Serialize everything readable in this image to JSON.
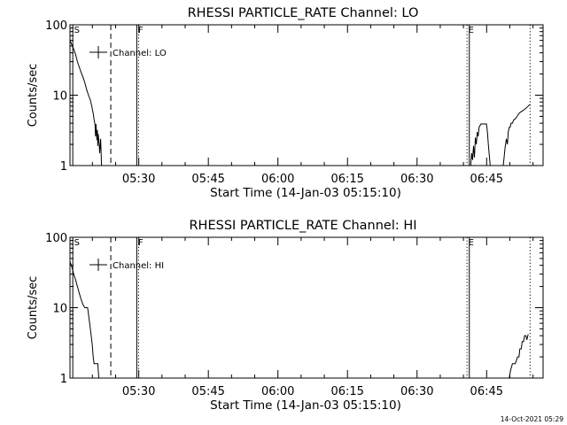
{
  "colors": {
    "background": "#ffffff",
    "foreground": "#000000"
  },
  "footer_timestamp": "14-Oct-2021 05:29",
  "chart_data": [
    {
      "type": "line",
      "title": "RHESSI PARTICLE_RATE Channel: LO",
      "xlabel": "Start Time (14-Jan-03 05:15:10)",
      "ylabel": "Counts/sec",
      "yscale": "log",
      "ylim": [
        1,
        100
      ],
      "xlim_minutes": [
        0,
        102
      ],
      "x_unit": "minutes after 05:15:10",
      "x_ticks": [
        {
          "label": "05:30",
          "minute": 14.83
        },
        {
          "label": "05:45",
          "minute": 29.83
        },
        {
          "label": "06:00",
          "minute": 44.83
        },
        {
          "label": "06:15",
          "minute": 59.83
        },
        {
          "label": "06:30",
          "minute": 74.83
        },
        {
          "label": "06:45",
          "minute": 89.83
        }
      ],
      "y_ticks": [
        {
          "label": "1",
          "value": 1
        },
        {
          "label": "10",
          "value": 10
        },
        {
          "label": "100",
          "value": 100
        }
      ],
      "legend": {
        "label": "Channel: LO",
        "placement": "top-left"
      },
      "markers": [
        {
          "label": "S",
          "minute": 0.6,
          "style": "solid"
        },
        {
          "label": "",
          "minute": 8.8,
          "style": "dashed"
        },
        {
          "label": "F",
          "minute": 14.4,
          "style": "solid"
        },
        {
          "label": "",
          "minute": 14.8,
          "style": "dotted"
        },
        {
          "label": "E",
          "minute": 85.6,
          "style": "dotted"
        },
        {
          "label": "",
          "minute": 86.1,
          "style": "solid"
        },
        {
          "label": "",
          "minute": 99.2,
          "style": "dotted"
        }
      ],
      "series": [
        {
          "name": "Channel: LO",
          "segments": [
            [
              [
                0,
                60
              ],
              [
                0.4,
                52
              ],
              [
                0.8,
                45
              ],
              [
                1.2,
                38
              ],
              [
                1.6,
                30
              ],
              [
                2.0,
                25
              ],
              [
                2.4,
                21
              ],
              [
                2.8,
                18
              ],
              [
                3.2,
                15
              ],
              [
                3.6,
                12
              ],
              [
                4.0,
                10
              ],
              [
                4.4,
                8.5
              ],
              [
                4.7,
                7
              ],
              [
                5.0,
                5.5
              ],
              [
                5.2,
                4.5
              ],
              [
                5.4,
                3.8
              ],
              [
                5.5,
                2.6
              ],
              [
                5.6,
                3.9
              ],
              [
                5.8,
                2.3
              ],
              [
                5.9,
                3.2
              ],
              [
                6.0,
                1.9
              ],
              [
                6.1,
                2.8
              ],
              [
                6.3,
                2.0
              ],
              [
                6.4,
                1.5
              ],
              [
                6.6,
                2.4
              ],
              [
                6.8,
                1.0
              ]
            ],
            [
              [
                86.4,
                1.0
              ],
              [
                86.6,
                1.5
              ],
              [
                86.8,
                1.2
              ],
              [
                87.0,
                1.9
              ],
              [
                87.2,
                1.3
              ],
              [
                87.4,
                2.5
              ],
              [
                87.6,
                2.0
              ],
              [
                87.8,
                3.0
              ],
              [
                88.0,
                2.6
              ],
              [
                88.2,
                3.5
              ],
              [
                88.6,
                3.9
              ],
              [
                89.4,
                3.9
              ],
              [
                89.8,
                3.9
              ],
              [
                90.0,
                3.0
              ],
              [
                90.2,
                2.0
              ],
              [
                90.4,
                1.4
              ],
              [
                90.6,
                1.0
              ]
            ],
            [
              [
                93.4,
                1.0
              ],
              [
                93.6,
                1.3
              ],
              [
                93.8,
                1.8
              ],
              [
                94.1,
                2.4
              ],
              [
                94.3,
                2.0
              ],
              [
                94.5,
                3.0
              ],
              [
                94.7,
                3.5
              ],
              [
                94.9,
                3.5
              ],
              [
                95.1,
                4.0
              ],
              [
                95.4,
                4.0
              ],
              [
                95.7,
                4.5
              ],
              [
                96.0,
                4.6
              ],
              [
                96.4,
                5.0
              ],
              [
                96.8,
                5.5
              ],
              [
                97.2,
                5.8
              ],
              [
                97.6,
                6.0
              ],
              [
                98.0,
                6.3
              ],
              [
                98.4,
                6.6
              ],
              [
                98.8,
                7.0
              ],
              [
                99.2,
                7.4
              ]
            ]
          ]
        }
      ]
    },
    {
      "type": "line",
      "title": "RHESSI PARTICLE_RATE Channel: HI",
      "xlabel": "Start Time (14-Jan-03 05:15:10)",
      "ylabel": "Counts/sec",
      "yscale": "log",
      "ylim": [
        1,
        100
      ],
      "xlim_minutes": [
        0,
        102
      ],
      "x_unit": "minutes after 05:15:10",
      "x_ticks": [
        {
          "label": "05:30",
          "minute": 14.83
        },
        {
          "label": "05:45",
          "minute": 29.83
        },
        {
          "label": "06:00",
          "minute": 44.83
        },
        {
          "label": "06:15",
          "minute": 59.83
        },
        {
          "label": "06:30",
          "minute": 74.83
        },
        {
          "label": "06:45",
          "minute": 89.83
        }
      ],
      "y_ticks": [
        {
          "label": "1",
          "value": 1
        },
        {
          "label": "10",
          "value": 10
        },
        {
          "label": "100",
          "value": 100
        }
      ],
      "legend": {
        "label": "Channel: HI",
        "placement": "top-left"
      },
      "markers": [
        {
          "label": "S",
          "minute": 0.6,
          "style": "solid"
        },
        {
          "label": "",
          "minute": 8.8,
          "style": "dashed"
        },
        {
          "label": "F",
          "minute": 14.4,
          "style": "solid"
        },
        {
          "label": "",
          "minute": 14.8,
          "style": "dotted"
        },
        {
          "label": "E",
          "minute": 85.6,
          "style": "dotted"
        },
        {
          "label": "",
          "minute": 86.1,
          "style": "solid"
        },
        {
          "label": "",
          "minute": 99.2,
          "style": "dotted"
        }
      ],
      "series": [
        {
          "name": "Channel: HI",
          "segments": [
            [
              [
                0,
                45
              ],
              [
                0.4,
                38
              ],
              [
                0.8,
                30
              ],
              [
                1.2,
                25
              ],
              [
                1.6,
                20
              ],
              [
                2.0,
                16
              ],
              [
                2.4,
                13
              ],
              [
                2.8,
                11
              ],
              [
                3.2,
                10
              ],
              [
                3.8,
                10
              ],
              [
                4.0,
                8
              ],
              [
                4.4,
                5
              ],
              [
                4.8,
                3
              ],
              [
                5.0,
                2
              ],
              [
                5.2,
                1.6
              ],
              [
                5.6,
                1.6
              ],
              [
                6.0,
                1.6
              ],
              [
                6.2,
                1.0
              ]
            ],
            [
              [
                94.7,
                1.0
              ],
              [
                95.0,
                1.3
              ],
              [
                95.4,
                1.6
              ],
              [
                96.0,
                1.6
              ],
              [
                96.5,
                2.0
              ],
              [
                96.8,
                2.0
              ],
              [
                97.0,
                2.6
              ],
              [
                97.3,
                2.6
              ],
              [
                97.5,
                3.3
              ],
              [
                97.8,
                3.3
              ],
              [
                98.0,
                4.0
              ],
              [
                98.3,
                4.0
              ],
              [
                98.5,
                3.5
              ],
              [
                98.8,
                4.2
              ]
            ]
          ]
        }
      ]
    }
  ]
}
